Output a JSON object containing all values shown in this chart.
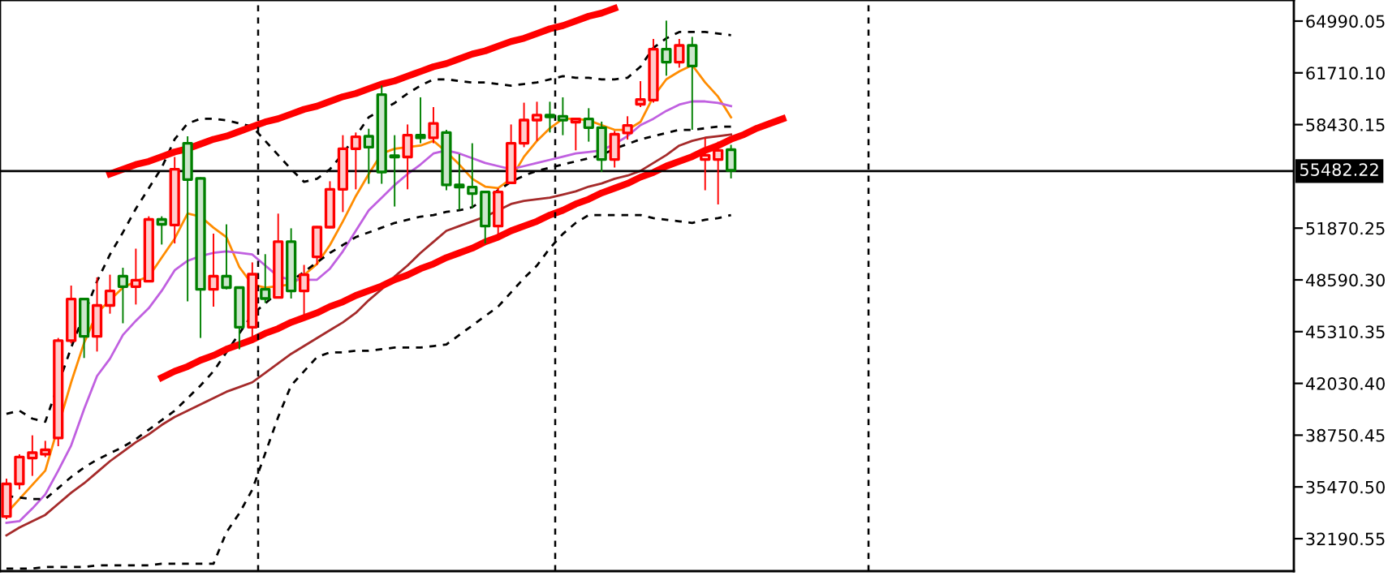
{
  "chart_data": [
    {
      "type": "candlestick",
      "categories": [
        null,
        null,
        null,
        null,
        null,
        null,
        null,
        null,
        null,
        null,
        null,
        null,
        null,
        null,
        null,
        null,
        null,
        null,
        null,
        null,
        null,
        null,
        null,
        null,
        null,
        null,
        null,
        null,
        null,
        null,
        null,
        null,
        null,
        null,
        null,
        null,
        null,
        null,
        null,
        null,
        null,
        null,
        null,
        null,
        null,
        null,
        null,
        null,
        null,
        null,
        null,
        null,
        null,
        null,
        null,
        null,
        null,
        null,
        null,
        null,
        null,
        null,
        null,
        null,
        null,
        null,
        null,
        null,
        null,
        null,
        null,
        null,
        null,
        null,
        null,
        null,
        null,
        null,
        null,
        null,
        null,
        null,
        null,
        null,
        null,
        null,
        null,
        null,
        null,
        null,
        null,
        null,
        null,
        null,
        null,
        null,
        null,
        null,
        null,
        null
      ],
      "ohlc": [
        [
          33600,
          36000,
          33420,
          35660
        ],
        [
          35660,
          37540,
          35310,
          37360
        ],
        [
          37300,
          38740,
          36170,
          37640
        ],
        [
          37540,
          38390,
          37360,
          37820
        ],
        [
          38570,
          44910,
          38050,
          44740
        ],
        [
          44740,
          48230,
          44560,
          47380
        ],
        [
          47380,
          47380,
          43640,
          45010
        ],
        [
          45010,
          48750,
          44050,
          46970
        ],
        [
          46970,
          48920,
          46450,
          47890
        ],
        [
          48820,
          49360,
          45840,
          48160
        ],
        [
          48160,
          50570,
          47030,
          48570
        ],
        [
          48510,
          52620,
          48440,
          52420
        ],
        [
          52420,
          52620,
          50830,
          52110
        ],
        [
          52070,
          56380,
          50900,
          55600
        ],
        [
          57250,
          57690,
          47230,
          54950
        ],
        [
          55020,
          55090,
          44910,
          47990
        ],
        [
          47990,
          51520,
          46890,
          48820
        ],
        [
          48820,
          52110,
          47990,
          48100
        ],
        [
          48100,
          48100,
          44190,
          45590
        ],
        [
          45590,
          49700,
          44740,
          48950
        ],
        [
          47990,
          50220,
          47130,
          47410
        ],
        [
          47480,
          52790,
          47410,
          51010
        ],
        [
          51010,
          51860,
          47410,
          47890
        ],
        [
          47890,
          49540,
          46100,
          48920
        ],
        [
          50050,
          52000,
          49540,
          51930
        ],
        [
          51930,
          54840,
          51860,
          54330
        ],
        [
          54330,
          57760,
          52890,
          56900
        ],
        [
          56900,
          57930,
          54330,
          57660
        ],
        [
          57690,
          58170,
          54680,
          57000
        ],
        [
          60330,
          60910,
          54680,
          55430
        ],
        [
          56460,
          57760,
          53240,
          56380
        ],
        [
          56380,
          58440,
          54330,
          57760
        ],
        [
          57760,
          60160,
          57250,
          57590
        ],
        [
          57590,
          59540,
          57250,
          58510
        ],
        [
          57930,
          58100,
          54270,
          54610
        ],
        [
          54610,
          56560,
          53030,
          54470
        ],
        [
          54470,
          57250,
          53140,
          54060
        ],
        [
          54160,
          54160,
          50900,
          52000
        ],
        [
          52000,
          54400,
          51420,
          54160
        ],
        [
          54740,
          58440,
          54680,
          57250
        ],
        [
          57250,
          59820,
          57000,
          58720
        ],
        [
          58720,
          59880,
          57410,
          59030
        ],
        [
          59030,
          59880,
          57930,
          58920
        ],
        [
          58960,
          60160,
          57760,
          58720
        ],
        [
          58590,
          58850,
          56800,
          58790
        ],
        [
          58790,
          59470,
          57350,
          58240
        ],
        [
          58240,
          58620,
          55430,
          56220
        ],
        [
          56220,
          58030,
          55710,
          57820
        ],
        [
          57900,
          58960,
          57480,
          58380
        ],
        [
          59720,
          61190,
          59540,
          60020
        ],
        [
          59980,
          63860,
          59820,
          63210
        ],
        [
          63210,
          65020,
          61530,
          62390
        ],
        [
          62390,
          63860,
          62040,
          63450
        ],
        [
          63450,
          63990,
          58100,
          62140
        ],
        [
          56220,
          57590,
          54270,
          56490
        ],
        [
          56220,
          57350,
          53370,
          56800
        ],
        [
          56840,
          57150,
          55020,
          55530
        ],
        null,
        null,
        null,
        null,
        null,
        null,
        null,
        null,
        null,
        null,
        null,
        null,
        null,
        null,
        null,
        null,
        null,
        null,
        null,
        null,
        null,
        null,
        null,
        null,
        null,
        null,
        null,
        null,
        null,
        null,
        null,
        null,
        null,
        null,
        null,
        null,
        null,
        null,
        null,
        null,
        null,
        null,
        null
      ],
      "colors": [
        "#ff0000",
        "#ff0000",
        "#ff0000",
        "#ff0000",
        "#ff0000",
        "#ff0000",
        "#008000",
        "#ff0000",
        "#ff0000",
        "#008000",
        "#ff0000",
        "#ff0000",
        "#008000",
        "#ff0000",
        "#008000",
        "#008000",
        "#ff0000",
        "#008000",
        "#008000",
        "#ff0000",
        "#008000",
        "#ff0000",
        "#008000",
        "#ff0000",
        "#ff0000",
        "#ff0000",
        "#ff0000",
        "#ff0000",
        "#008000",
        "#008000",
        "#008000",
        "#ff0000",
        "#008000",
        "#ff0000",
        "#008000",
        "#008000",
        "#008000",
        "#008000",
        "#ff0000",
        "#ff0000",
        "#ff0000",
        "#ff0000",
        "#008000",
        "#008000",
        "#ff0000",
        "#008000",
        "#008000",
        "#ff0000",
        "#ff0000",
        "#ff0000",
        "#ff0000",
        "#008000",
        "#ff0000",
        "#008000",
        "#ff0000",
        "#ff0000",
        "#008000",
        null,
        null,
        null,
        null,
        null,
        null,
        null,
        null,
        null,
        null,
        null,
        null,
        null,
        null,
        null,
        null,
        null,
        null,
        null,
        null,
        null,
        null,
        null,
        null,
        null,
        null,
        null,
        null,
        null,
        null,
        null,
        null,
        null,
        null,
        null,
        null,
        null,
        null,
        null,
        null,
        null,
        null,
        null
      ],
      "ylim": [
        30134,
        66327
      ],
      "yticks": [
        {
          "value": 64990.05,
          "label": "64990.05"
        },
        {
          "value": 61710.1,
          "label": "61710.10"
        },
        {
          "value": 58430.15,
          "label": "58430.15"
        },
        {
          "value": 51870.25,
          "label": "51870.25"
        },
        {
          "value": 48590.3,
          "label": "48590.30"
        },
        {
          "value": 45310.35,
          "label": "45310.35"
        },
        {
          "value": 42030.4,
          "label": "42030.40"
        },
        {
          "value": 38750.45,
          "label": "38750.45"
        },
        {
          "value": 35470.5,
          "label": "35470.50"
        },
        {
          "value": 32190.55,
          "label": "32190.55"
        }
      ],
      "ref_lines": [
        {
          "axis": "y",
          "value": 55482.22,
          "label": "55482.22",
          "color": "#000000",
          "line_style": "solid"
        }
      ],
      "tick_labels": "y",
      "legend": false
    },
    {
      "type": "line",
      "categories": [
        null,
        null,
        null,
        null,
        null,
        null,
        null,
        null,
        null,
        null,
        null,
        null,
        null,
        null,
        null,
        null,
        null,
        null,
        null,
        null,
        null,
        null,
        null,
        null,
        null,
        null,
        null,
        null,
        null,
        null,
        null,
        null,
        null,
        null,
        null,
        null,
        null,
        null,
        null,
        null,
        null,
        null,
        null,
        null,
        null,
        null,
        null,
        null,
        null,
        null,
        null,
        null,
        null,
        null,
        null,
        null,
        null,
        null,
        null,
        null,
        null,
        null,
        null,
        null,
        null,
        null,
        null,
        null,
        null,
        null,
        null,
        null,
        null,
        null,
        null,
        null,
        null,
        null,
        null,
        null,
        null,
        null,
        null,
        null,
        null,
        null,
        null,
        null,
        null,
        null,
        null,
        null,
        null,
        null,
        null,
        null,
        null,
        null,
        null,
        null
      ],
      "series": [
        {
          "color": "#ff8c00",
          "line_style": "solid",
          "values": [
            33800,
            34700,
            35600,
            36500,
            null,
            42100,
            44600,
            46500,
            47300,
            48100,
            48500,
            48800,
            50000,
            51200,
            52800,
            52600,
            51900,
            51300,
            49400,
            48300,
            48100,
            48200,
            48300,
            48900,
            49600,
            50800,
            52300,
            53900,
            55300,
            56600,
            56900,
            57000,
            57100,
            57400,
            56700,
            55900,
            55000,
            54500,
            54400,
            55000,
            56400,
            57400,
            58200,
            58800,
            58800,
            58700,
            58400,
            58100,
            58100,
            58600,
            60200,
            61300,
            61800,
            62200,
            61100,
            60200,
            58900,
            null,
            null,
            null,
            null,
            null,
            null,
            null,
            null,
            null,
            null,
            null,
            null,
            null,
            null,
            null,
            null,
            null,
            null,
            null,
            null,
            null,
            null,
            null,
            null,
            null,
            null,
            null,
            null,
            null,
            null,
            null,
            null,
            null,
            null,
            null,
            null,
            null,
            null,
            null,
            null,
            null,
            null,
            null
          ]
        },
        {
          "color": "#c060e0",
          "line_style": "solid",
          "values": [
            33200,
            33300,
            34100,
            35000,
            36500,
            38100,
            40400,
            42500,
            43600,
            45100,
            46000,
            46800,
            47900,
            49200,
            49800,
            50100,
            50300,
            50400,
            50300,
            50200,
            49500,
            48800,
            48600,
            48600,
            48600,
            49300,
            50400,
            51700,
            53000,
            53800,
            54600,
            55300,
            55900,
            56600,
            56800,
            56600,
            56300,
            56000,
            55800,
            55600,
            55800,
            56000,
            56200,
            56400,
            56600,
            56700,
            56800,
            57200,
            57700,
            58400,
            58800,
            59300,
            59700,
            59900,
            59900,
            59800,
            59600,
            null,
            null,
            null,
            null,
            null,
            null,
            null,
            null,
            null,
            null,
            null,
            null,
            null,
            null,
            null,
            null,
            null,
            null,
            null,
            null,
            null,
            null,
            null,
            null,
            null,
            null,
            null,
            null,
            null,
            null,
            null,
            null,
            null,
            null,
            null,
            null,
            null,
            null,
            null,
            null,
            null,
            null,
            null
          ]
        },
        {
          "color": "#a52a2a",
          "line_style": "solid",
          "values": [
            32400,
            32900,
            33300,
            33700,
            34400,
            35100,
            35700,
            36400,
            37100,
            37700,
            38300,
            38800,
            39400,
            39900,
            40300,
            40700,
            41100,
            41500,
            41800,
            42100,
            42700,
            43300,
            43900,
            44400,
            44900,
            45400,
            45900,
            46500,
            47300,
            48000,
            48800,
            49500,
            50300,
            51000,
            51700,
            52000,
            52300,
            52600,
            53000,
            53400,
            53600,
            53700,
            53800,
            54000,
            54200,
            54500,
            54700,
            55000,
            55200,
            55500,
            56000,
            56500,
            57100,
            57400,
            57600,
            57700,
            57800,
            null,
            null,
            null,
            null,
            null,
            null,
            null,
            null,
            null,
            null,
            null,
            null,
            null,
            null,
            null,
            null,
            null,
            null,
            null,
            null,
            null,
            null,
            null,
            null,
            null,
            null,
            null,
            null,
            null,
            null,
            null,
            null,
            null,
            null,
            null,
            null,
            null,
            null,
            null,
            null,
            null,
            null,
            null
          ]
        },
        {
          "color": "#000000",
          "line_style": "dashed",
          "values": [
            40100,
            40300,
            39800,
            39600,
            null,
            44300,
            null,
            48500,
            50200,
            51600,
            53100,
            54400,
            55700,
            57500,
            58500,
            58800,
            58800,
            58700,
            58500,
            58300,
            57400,
            56500,
            55600,
            54800,
            55000,
            55600,
            56600,
            57700,
            58900,
            null,
            59800,
            60400,
            60900,
            61300,
            61300,
            61200,
            61100,
            61100,
            61000,
            60900,
            61000,
            61100,
            61300,
            61500,
            61400,
            61400,
            61300,
            61300,
            61400,
            62100,
            63300,
            63900,
            64300,
            64300,
            64300,
            64200,
            64100,
            null,
            null,
            null,
            null,
            null,
            null,
            null,
            null,
            null,
            null,
            null,
            null,
            null,
            null,
            null,
            null,
            null,
            null,
            null,
            null,
            null,
            null,
            null,
            null,
            null,
            null,
            null,
            null,
            null,
            null,
            null,
            null,
            null,
            null,
            null,
            null,
            null,
            null,
            null,
            null,
            null,
            null,
            null
          ]
        },
        {
          "color": "#000000",
          "line_style": "dashed",
          "values": [
            34900,
            34800,
            34700,
            34700,
            35400,
            36100,
            36700,
            37200,
            37600,
            38000,
            38500,
            39100,
            39700,
            40300,
            41100,
            41900,
            42800,
            44000,
            45200,
            46400,
            47100,
            null,
            48500,
            49100,
            49700,
            50300,
            50800,
            51300,
            51600,
            51900,
            52200,
            52400,
            52600,
            52700,
            52900,
            53000,
            53200,
            null,
            null,
            54800,
            55200,
            55500,
            55700,
            55900,
            56100,
            56300,
            56500,
            56900,
            57200,
            57500,
            57700,
            57900,
            58100,
            58100,
            58200,
            58300,
            58300,
            null,
            null,
            null,
            null,
            null,
            null,
            null,
            null,
            null,
            null,
            null,
            null,
            null,
            null,
            null,
            null,
            null,
            null,
            null,
            null,
            null,
            null,
            null,
            null,
            null,
            null,
            null,
            null,
            null,
            null,
            null,
            null,
            null,
            null,
            null,
            null,
            null,
            null,
            null,
            null,
            null,
            null,
            null
          ]
        },
        {
          "color": "#000000",
          "line_style": "dashed",
          "values": [
            30300,
            30300,
            30300,
            30400,
            30400,
            30400,
            30400,
            30500,
            30500,
            30500,
            30500,
            30500,
            30600,
            30600,
            30600,
            30600,
            30600,
            32600,
            33800,
            35300,
            37600,
            39900,
            41900,
            42800,
            43700,
            44000,
            44000,
            44100,
            44100,
            44200,
            44300,
            44300,
            44300,
            44400,
            44500,
            45100,
            45700,
            46300,
            46900,
            47800,
            48700,
            49500,
            50600,
            51500,
            52200,
            52700,
            52700,
            52700,
            52700,
            52700,
            52500,
            52400,
            52300,
            52200,
            52400,
            52500,
            52700,
            null,
            null,
            null,
            null,
            null,
            null,
            null,
            null,
            null,
            null,
            null,
            null,
            null,
            null,
            null,
            null,
            null,
            null,
            null,
            null,
            null,
            null,
            null,
            null,
            null,
            null,
            null,
            null,
            null,
            null,
            null,
            null,
            null,
            null,
            null,
            null,
            null,
            null,
            null,
            null,
            null,
            null,
            null
          ]
        },
        {
          "color": "#ff0000",
          "line_style": "solid",
          "values": [
            null,
            null,
            null,
            null,
            null,
            null,
            null,
            null,
            55300,
            55600,
            55900,
            56100,
            56400,
            56700,
            56900,
            57200,
            57500,
            57700,
            58000,
            58300,
            58600,
            58800,
            59100,
            59400,
            59600,
            59900,
            60200,
            60400,
            60700,
            61000,
            61200,
            61500,
            61800,
            62100,
            62300,
            62600,
            62900,
            63100,
            63400,
            63700,
            63900,
            64200,
            64500,
            64700,
            65000,
            65300,
            65500,
            65800,
            null,
            null,
            null,
            null,
            null,
            null,
            null,
            null,
            null,
            null,
            null,
            null,
            null,
            null,
            null,
            null,
            null,
            null,
            null,
            null,
            null,
            null,
            null,
            null,
            null,
            null,
            null,
            null,
            null,
            null,
            null,
            null,
            null,
            null,
            null,
            null,
            null,
            null,
            null,
            null,
            null,
            null,
            null,
            null,
            null,
            null,
            null,
            null,
            null,
            null,
            null,
            null
          ]
        },
        {
          "color": "#ff0000",
          "line_style": "solid",
          "values": [
            null,
            null,
            null,
            null,
            null,
            null,
            null,
            null,
            null,
            null,
            null,
            null,
            42400,
            42800,
            43100,
            43500,
            43800,
            44200,
            44500,
            44800,
            45200,
            45500,
            45900,
            46200,
            46500,
            46900,
            47200,
            47600,
            47900,
            48200,
            48600,
            48900,
            49300,
            49600,
            50000,
            50300,
            50600,
            51000,
            51300,
            51700,
            52000,
            52300,
            52700,
            53000,
            53400,
            53700,
            54100,
            54400,
            54700,
            55100,
            55400,
            55800,
            56100,
            56400,
            56800,
            57100,
            57500,
            57800,
            58200,
            58500,
            58800,
            null,
            null,
            null,
            null,
            null,
            null,
            null,
            null,
            null,
            null,
            null,
            null,
            null,
            null,
            null,
            null,
            null,
            null,
            null,
            null,
            null,
            null,
            null,
            null,
            null,
            null,
            null,
            null,
            null,
            null,
            null,
            null,
            null,
            null,
            null,
            null,
            null,
            null,
            null
          ]
        }
      ],
      "ylim": [
        30134,
        66327
      ],
      "tick_labels": false,
      "legend": false
    }
  ]
}
